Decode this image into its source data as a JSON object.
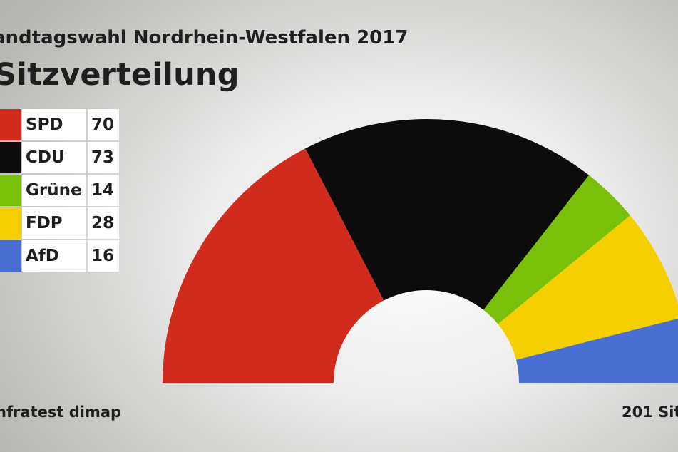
{
  "header": {
    "title": "andtagswahl Nordrhein-Westfalen 2017",
    "subtitle": "Sitzverteilung"
  },
  "footer": {
    "source": "nfratest dimap",
    "total": "201 Sitz"
  },
  "chart_data": {
    "type": "pie",
    "subtype": "hemicycle",
    "title": "Sitzverteilung",
    "categories": [
      "SPD",
      "CDU",
      "Grüne",
      "FDP",
      "AfD"
    ],
    "values": [
      70,
      73,
      14,
      28,
      16
    ],
    "colors": [
      "#d12b1e",
      "#0c0c0c",
      "#78c00a",
      "#f5cf00",
      "#4a6fd2"
    ],
    "legend": "left",
    "total_seats": 201
  }
}
